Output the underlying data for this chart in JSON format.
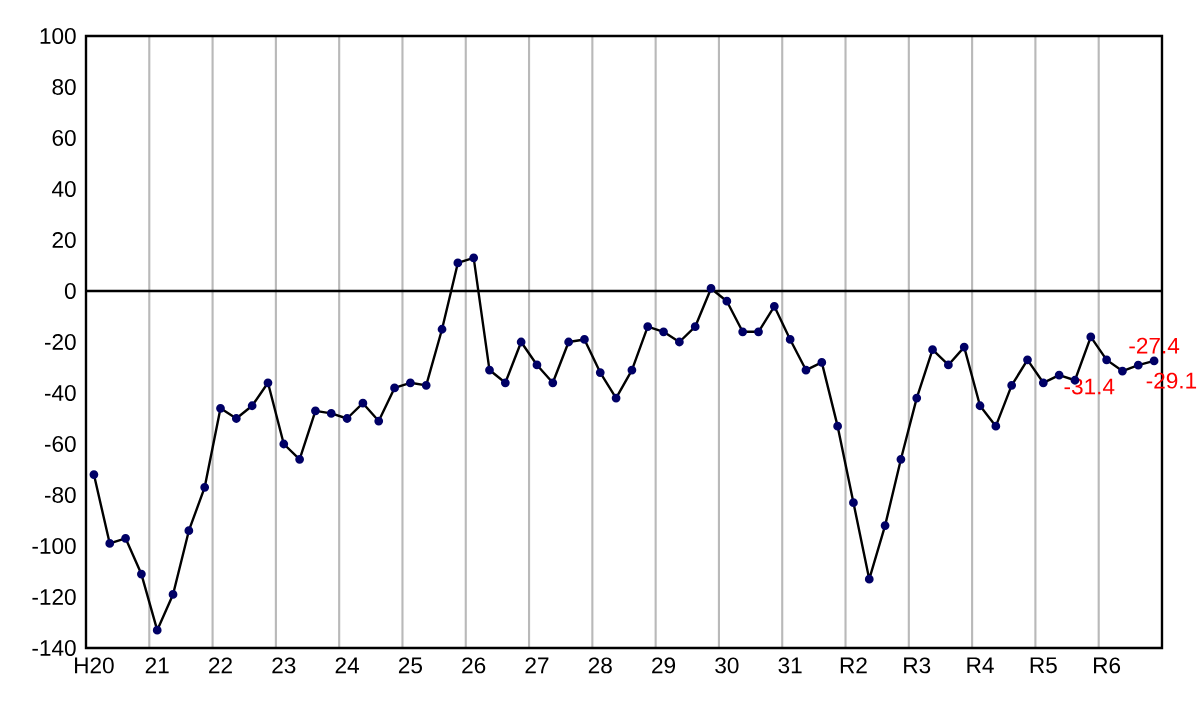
{
  "chart_data": {
    "type": "line",
    "categories": [
      "H20",
      null,
      null,
      null,
      "21",
      null,
      null,
      null,
      "22",
      null,
      null,
      null,
      "23",
      null,
      null,
      null,
      "24",
      null,
      null,
      null,
      "25",
      null,
      null,
      null,
      "26",
      null,
      null,
      null,
      "27",
      null,
      null,
      null,
      "28",
      null,
      null,
      null,
      "29",
      null,
      null,
      null,
      "30",
      null,
      null,
      null,
      "31",
      null,
      null,
      null,
      "R2",
      null,
      null,
      null,
      "R3",
      null,
      null,
      null,
      "R4",
      null,
      null,
      null,
      "R5",
      null,
      null,
      null,
      "R6",
      null,
      null,
      null
    ],
    "series": [
      {
        "color": "#000066",
        "values": [
          -72,
          -99,
          -97,
          -111,
          -133,
          -119,
          -94,
          -77,
          -46,
          -50,
          -45,
          -36,
          -60,
          -66,
          -47,
          -48,
          -50,
          -44,
          -51,
          -38,
          -36,
          -37,
          -15,
          11,
          13,
          -31,
          -36,
          -20,
          -29,
          -36,
          -20,
          -19,
          -32,
          -42,
          -31,
          -14,
          -16,
          -20,
          -14,
          1,
          -4,
          -16,
          -16,
          -6,
          -19,
          -31,
          -28,
          -53,
          -83,
          -113,
          -92,
          -66,
          -42,
          -23,
          -29,
          -22,
          -45,
          -53,
          -37,
          -27,
          -36,
          -33,
          -35,
          -18,
          -27,
          -31.4,
          -29.1,
          -27.4
        ],
        "value_labels": [
          null,
          null,
          null,
          null,
          null,
          null,
          null,
          null,
          null,
          null,
          null,
          null,
          null,
          null,
          null,
          null,
          null,
          null,
          null,
          null,
          null,
          null,
          null,
          null,
          null,
          null,
          null,
          null,
          null,
          null,
          null,
          null,
          null,
          null,
          null,
          null,
          null,
          null,
          null,
          null,
          null,
          null,
          null,
          null,
          null,
          null,
          null,
          null,
          null,
          null,
          null,
          null,
          null,
          null,
          null,
          null,
          null,
          null,
          null,
          null,
          null,
          null,
          null,
          null,
          null,
          "-31.4",
          "-29.1",
          "-27.4"
        ]
      }
    ],
    "ylim": [
      -140,
      100
    ],
    "yticks": [
      -140,
      -120,
      -100,
      -80,
      -60,
      -40,
      -20,
      0,
      20,
      40,
      60,
      80,
      100
    ],
    "ref_lines": [
      {
        "axis": "y",
        "value": 0,
        "color": "#000000"
      }
    ],
    "grid": "x",
    "marker": "circle",
    "line_style": "solid"
  }
}
